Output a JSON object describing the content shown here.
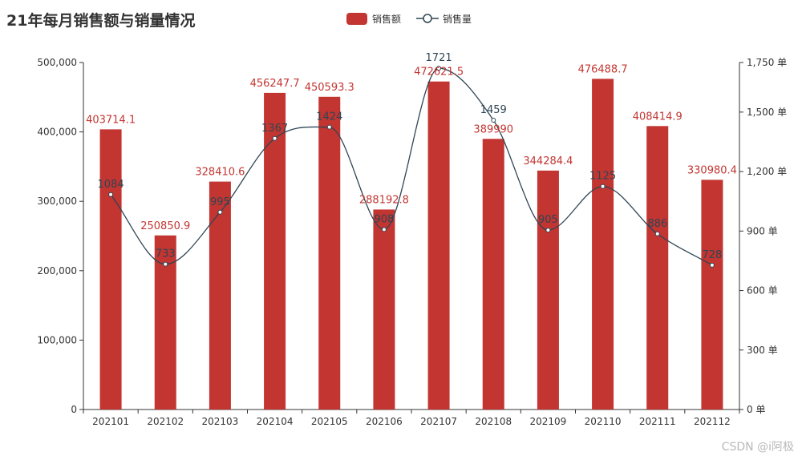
{
  "chart_data": {
    "type": "bar",
    "title": "21年每月销售额与销量情况",
    "categories": [
      "202101",
      "202102",
      "202103",
      "202104",
      "202105",
      "202106",
      "202107",
      "202108",
      "202109",
      "202110",
      "202111",
      "202112"
    ],
    "series": [
      {
        "name": "销售额",
        "type": "bar",
        "axis": "left",
        "values": [
          403714.1,
          250850.9,
          328410.6,
          456247.7,
          450593.3,
          288192.8,
          472621.5,
          389990,
          344284.4,
          476488.7,
          408414.9,
          330980.4
        ],
        "labels": [
          "403714.1",
          "250850.9",
          "328410.6",
          "456247.7",
          "450593.3",
          "288192.8",
          "472621.5",
          "389990",
          "344284.4",
          "476488.7",
          "408414.9",
          "330980.4"
        ],
        "color": "#c23531"
      },
      {
        "name": "销售量",
        "type": "line",
        "smooth": true,
        "axis": "right",
        "values": [
          1084,
          733,
          995,
          1367,
          1424,
          908,
          1721,
          1459,
          905,
          1125,
          886,
          728
        ],
        "color": "#2f4554"
      }
    ],
    "y_left": {
      "min": 0,
      "max": 500000,
      "ticks": [
        0,
        100000,
        200000,
        300000,
        400000,
        500000
      ],
      "tick_labels": [
        "0",
        "100,000",
        "200,000",
        "300,000",
        "400,000",
        "500,000"
      ]
    },
    "y_right": {
      "min": 0,
      "max": 1750,
      "ticks": [
        0,
        300,
        600,
        900,
        1200,
        1500,
        1750
      ],
      "tick_labels": [
        "0 单",
        "300 单",
        "600 单",
        "900 单",
        "1,200 单",
        "1,500 单",
        "1,750 单"
      ]
    },
    "grid": false,
    "legend_position": "top-center"
  },
  "watermark": "CSDN @i阿极"
}
